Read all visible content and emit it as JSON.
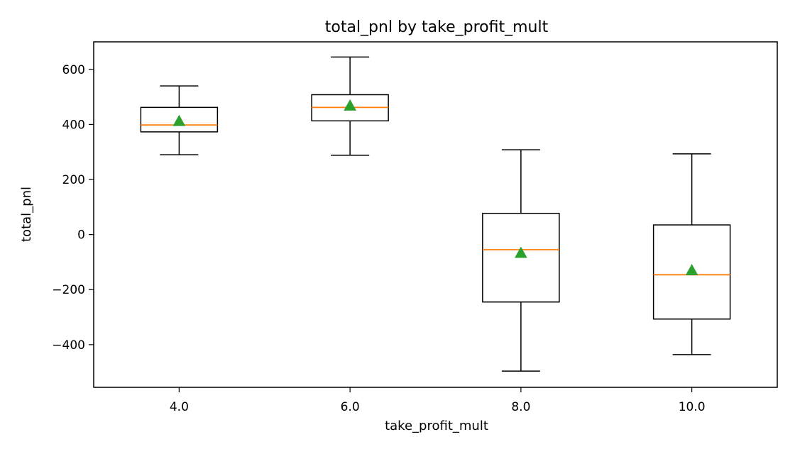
{
  "chart_data": {
    "type": "box",
    "title": "total_pnl by take_profit_mult",
    "xlabel": "take_profit_mult",
    "ylabel": "total_pnl",
    "categories": [
      "4.0",
      "6.0",
      "8.0",
      "10.0"
    ],
    "ylim": [
      -555,
      700
    ],
    "yticks": [
      600,
      400,
      200,
      0,
      -200,
      -400
    ],
    "ytick_labels": [
      "600",
      "400",
      "200",
      "0",
      "−200",
      "−400"
    ],
    "grid": false,
    "boxes": [
      {
        "category": "4.0",
        "whisker_low": 290,
        "q1": 373,
        "median": 398,
        "q3": 462,
        "whisker_high": 540,
        "mean": 412
      },
      {
        "category": "6.0",
        "whisker_low": 288,
        "q1": 413,
        "median": 462,
        "q3": 508,
        "whisker_high": 645,
        "mean": 468
      },
      {
        "category": "8.0",
        "whisker_low": -496,
        "q1": -245,
        "median": -55,
        "q3": 77,
        "whisker_high": 308,
        "mean": -67
      },
      {
        "category": "10.0",
        "whisker_low": -436,
        "q1": -307,
        "median": -146,
        "q3": 35,
        "whisker_high": 293,
        "mean": -130
      }
    ],
    "colors": {
      "box": "#000000",
      "median": "#ff7f0e",
      "mean": "#2ca02c"
    }
  }
}
